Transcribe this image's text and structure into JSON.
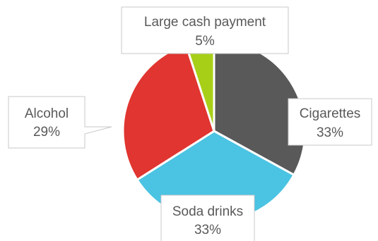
{
  "chart_data": {
    "type": "pie",
    "slices": [
      {
        "label": "Cigarettes",
        "value": 33,
        "value_label": "33%",
        "color": "#595959"
      },
      {
        "label": "Soda drinks",
        "value": 33,
        "value_label": "33%",
        "color": "#4bc3e2"
      },
      {
        "label": "Alcohol",
        "value": 29,
        "value_label": "29%",
        "color": "#e03530"
      },
      {
        "label": "Large cash payment",
        "value": 5,
        "value_label": "5%",
        "color": "#a8cf18"
      }
    ],
    "start": "12 o'clock",
    "direction": "clockwise",
    "legend": "none",
    "data_labels": "callouts"
  }
}
